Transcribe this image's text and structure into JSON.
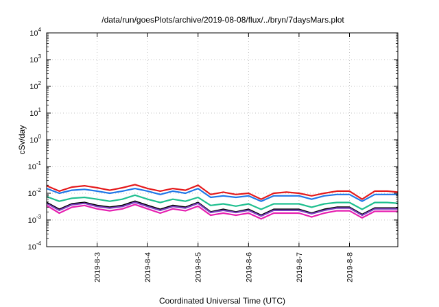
{
  "chart_data": {
    "type": "line",
    "title": "/data/run/goesPlots/archive/2019-08-08/flux/../bryn/7daysMars.plot",
    "xlabel": "Coordinated Universal Time (UTC)",
    "ylabel": "cSv/day",
    "yscale": "log",
    "ylim": [
      0.0001,
      10000
    ],
    "xlim": [
      "2019-08-02T00:00",
      "2019-08-08T23:00"
    ],
    "grid": true,
    "x_ticks": [
      "2019-8-3",
      "2019-8-4",
      "2019-8-5",
      "2019-8-6",
      "2019-8-7",
      "2019-8-8"
    ],
    "y_ticks": [
      {
        "base": "10",
        "exp": "4"
      },
      {
        "base": "10",
        "exp": "3"
      },
      {
        "base": "10",
        "exp": "2"
      },
      {
        "base": "10",
        "exp": "1"
      },
      {
        "base": "10",
        "exp": "0"
      },
      {
        "base": "10",
        "exp": "-1"
      },
      {
        "base": "10",
        "exp": "-2"
      },
      {
        "base": "10",
        "exp": "-3"
      },
      {
        "base": "10",
        "exp": "-4"
      }
    ],
    "x": [
      "2019-08-02T00:00",
      "2019-08-02T06:00",
      "2019-08-02T12:00",
      "2019-08-02T18:00",
      "2019-08-03T00:00",
      "2019-08-03T06:00",
      "2019-08-03T12:00",
      "2019-08-03T18:00",
      "2019-08-04T00:00",
      "2019-08-04T06:00",
      "2019-08-04T12:00",
      "2019-08-04T18:00",
      "2019-08-05T00:00",
      "2019-08-05T06:00",
      "2019-08-05T12:00",
      "2019-08-05T18:00",
      "2019-08-06T00:00",
      "2019-08-06T06:00",
      "2019-08-06T12:00",
      "2019-08-06T18:00",
      "2019-08-07T00:00",
      "2019-08-07T06:00",
      "2019-08-07T12:00",
      "2019-08-07T18:00",
      "2019-08-08T00:00",
      "2019-08-08T06:00",
      "2019-08-08T12:00",
      "2019-08-08T18:00",
      "2019-08-08T23:00"
    ],
    "series": [
      {
        "color": "#e41a1c",
        "values": [
          0.019,
          0.012,
          0.017,
          0.019,
          0.016,
          0.013,
          0.016,
          0.021,
          0.015,
          0.012,
          0.015,
          0.013,
          0.02,
          0.009,
          0.011,
          0.009,
          0.01,
          0.006,
          0.01,
          0.011,
          0.01,
          0.008,
          0.01,
          0.012,
          0.012,
          0.006,
          0.012,
          0.012,
          0.011
        ]
      },
      {
        "color": "#1f77e8",
        "values": [
          0.015,
          0.01,
          0.013,
          0.014,
          0.012,
          0.01,
          0.012,
          0.015,
          0.012,
          0.009,
          0.012,
          0.01,
          0.015,
          0.007,
          0.008,
          0.007,
          0.008,
          0.005,
          0.008,
          0.008,
          0.008,
          0.006,
          0.008,
          0.009,
          0.009,
          0.005,
          0.009,
          0.009,
          0.009
        ]
      },
      {
        "color": "#1fbf8f",
        "values": [
          0.0075,
          0.005,
          0.0065,
          0.007,
          0.006,
          0.005,
          0.006,
          0.0085,
          0.006,
          0.0045,
          0.006,
          0.005,
          0.007,
          0.0035,
          0.004,
          0.0033,
          0.004,
          0.0025,
          0.004,
          0.004,
          0.004,
          0.003,
          0.004,
          0.0045,
          0.0045,
          0.0025,
          0.0045,
          0.0045,
          0.0042
        ]
      },
      {
        "color": "#000000",
        "values": [
          0.0045,
          0.0025,
          0.004,
          0.0045,
          0.0035,
          0.003,
          0.0035,
          0.005,
          0.0035,
          0.0025,
          0.0035,
          0.003,
          0.0045,
          0.002,
          0.0025,
          0.002,
          0.0025,
          0.0015,
          0.0025,
          0.0025,
          0.0025,
          0.0018,
          0.0025,
          0.003,
          0.003,
          0.0016,
          0.0028,
          0.0028,
          0.0028
        ]
      },
      {
        "color": "#7b3fbf",
        "values": [
          0.0042,
          0.0023,
          0.0037,
          0.0042,
          0.0032,
          0.0028,
          0.0032,
          0.0046,
          0.0032,
          0.0023,
          0.0032,
          0.0028,
          0.0042,
          0.0019,
          0.0023,
          0.0019,
          0.0023,
          0.0014,
          0.0023,
          0.0023,
          0.0023,
          0.0017,
          0.0023,
          0.0028,
          0.0028,
          0.0015,
          0.0026,
          0.0026,
          0.0026
        ]
      },
      {
        "color": "#e61fb0",
        "values": [
          0.0035,
          0.0018,
          0.003,
          0.0035,
          0.0026,
          0.0022,
          0.0026,
          0.0038,
          0.0026,
          0.0018,
          0.0026,
          0.0022,
          0.0033,
          0.0015,
          0.0018,
          0.0015,
          0.0018,
          0.0011,
          0.0018,
          0.0018,
          0.0018,
          0.0013,
          0.0018,
          0.0022,
          0.0022,
          0.0012,
          0.0021,
          0.0021,
          0.0021
        ]
      }
    ]
  }
}
